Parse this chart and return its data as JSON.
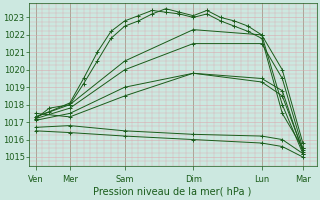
{
  "xlabel": "Pression niveau de la mer( hPa )",
  "background_color": "#cce8e0",
  "grid_color": "#dbaab0",
  "line_color": "#1a5c1a",
  "ylim": [
    1014.5,
    1023.8
  ],
  "xlim": [
    0,
    210
  ],
  "day_labels": [
    "Ven",
    "Mer",
    "Sam",
    "Dim",
    "Lun",
    "Mar"
  ],
  "day_positions": [
    5,
    30,
    70,
    120,
    170,
    200
  ],
  "yticks": [
    1015,
    1016,
    1017,
    1018,
    1019,
    1020,
    1021,
    1022,
    1023
  ],
  "lines": [
    {
      "x": [
        5,
        15,
        30,
        40,
        50,
        60,
        70,
        80,
        90,
        100,
        110,
        120,
        130,
        140,
        150,
        160,
        170,
        185,
        200
      ],
      "y": [
        1017.2,
        1017.8,
        1018.0,
        1019.2,
        1020.5,
        1021.8,
        1022.5,
        1022.8,
        1023.2,
        1023.5,
        1023.3,
        1023.1,
        1023.4,
        1023.0,
        1022.8,
        1022.5,
        1022.0,
        1018.0,
        1015.2
      ]
    },
    {
      "x": [
        5,
        15,
        30,
        40,
        50,
        60,
        70,
        80,
        90,
        100,
        110,
        120,
        130,
        140,
        150,
        160,
        170,
        185,
        200
      ],
      "y": [
        1017.3,
        1017.6,
        1018.1,
        1019.5,
        1021.0,
        1022.2,
        1022.8,
        1023.1,
        1023.4,
        1023.3,
        1023.2,
        1023.0,
        1023.2,
        1022.8,
        1022.5,
        1022.2,
        1021.8,
        1017.5,
        1015.5
      ]
    },
    {
      "x": [
        5,
        30,
        70,
        120,
        170,
        185,
        200
      ],
      "y": [
        1017.3,
        1018.0,
        1020.5,
        1022.3,
        1022.0,
        1020.0,
        1015.8
      ]
    },
    {
      "x": [
        5,
        30,
        70,
        120,
        170,
        185,
        200
      ],
      "y": [
        1017.2,
        1017.8,
        1020.0,
        1021.5,
        1021.5,
        1019.5,
        1015.5
      ]
    },
    {
      "x": [
        5,
        30,
        70,
        120,
        170,
        185,
        200
      ],
      "y": [
        1017.1,
        1017.5,
        1019.0,
        1019.8,
        1019.5,
        1018.8,
        1015.3
      ]
    },
    {
      "x": [
        5,
        30,
        70,
        120,
        170,
        185,
        200
      ],
      "y": [
        1016.7,
        1016.8,
        1016.5,
        1016.3,
        1016.2,
        1016.0,
        1015.2
      ]
    },
    {
      "x": [
        5,
        30,
        70,
        120,
        170,
        185,
        200
      ],
      "y": [
        1016.5,
        1016.4,
        1016.2,
        1016.0,
        1015.8,
        1015.6,
        1015.0
      ]
    },
    {
      "x": [
        5,
        30,
        70,
        120,
        170,
        185,
        200
      ],
      "y": [
        1017.5,
        1017.3,
        1018.5,
        1019.8,
        1019.3,
        1018.5,
        1015.4
      ]
    }
  ]
}
